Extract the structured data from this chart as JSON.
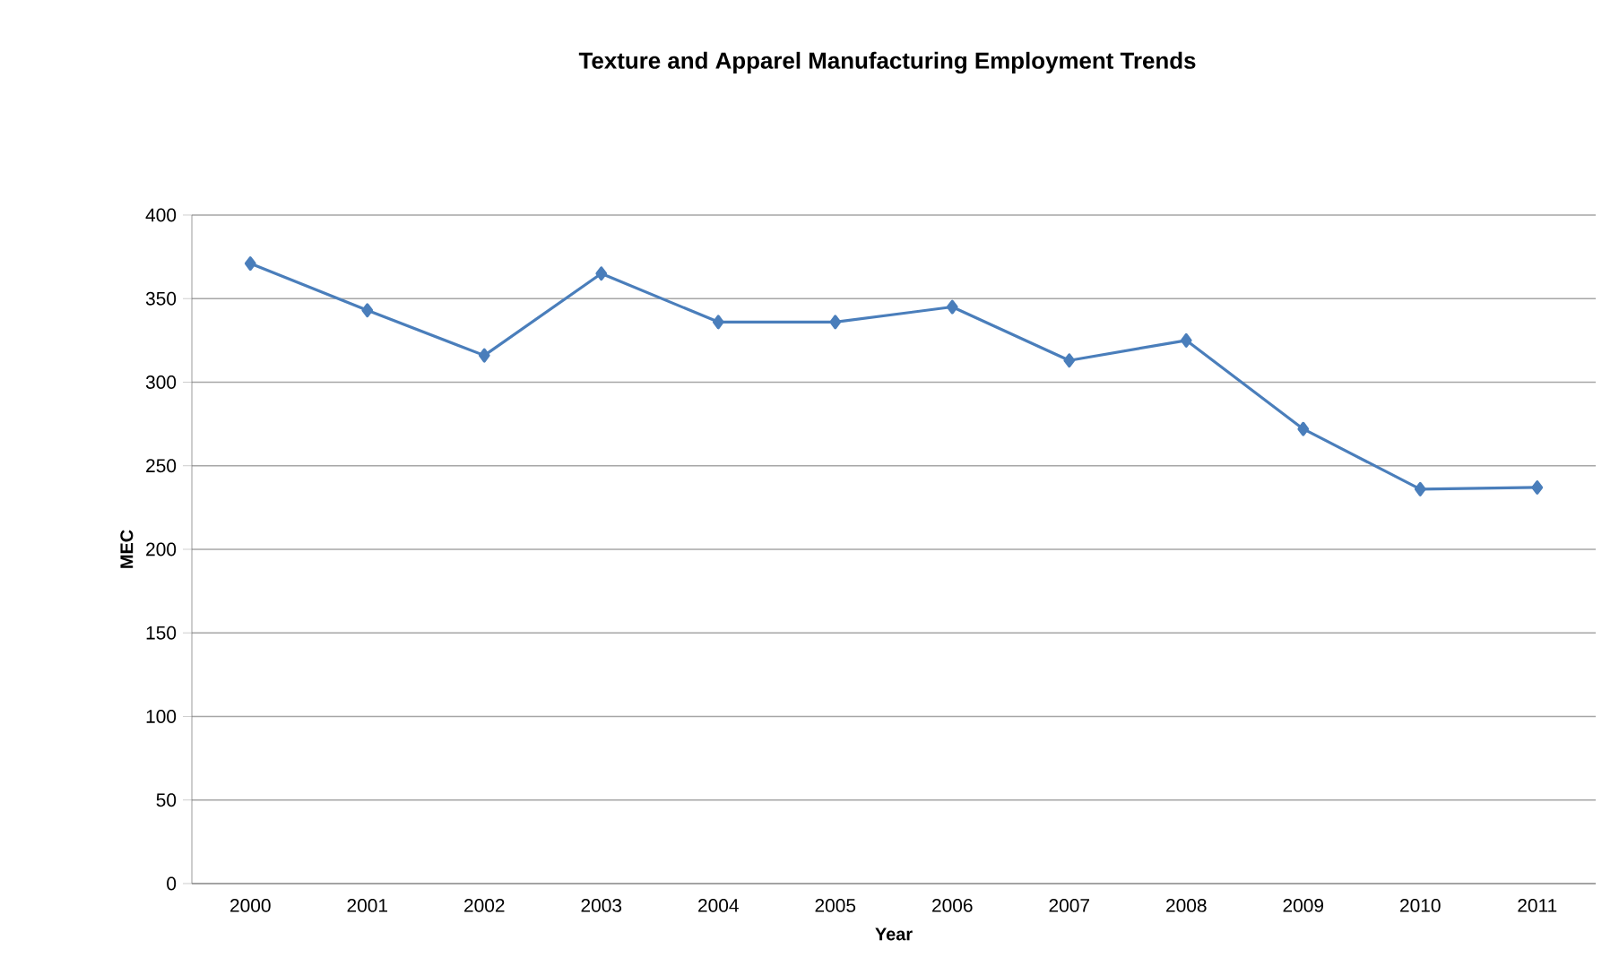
{
  "chart_data": {
    "type": "line",
    "title": "Texture and Apparel Manufacturing Employment Trends",
    "xlabel": "Year",
    "ylabel": "MEC",
    "categories": [
      "2000",
      "2001",
      "2002",
      "2003",
      "2004",
      "2005",
      "2006",
      "2007",
      "2008",
      "2009",
      "2010",
      "2011"
    ],
    "series": [
      {
        "color": "#4a7ebb",
        "values": [
          371,
          343,
          316,
          365,
          336,
          336,
          345,
          313,
          325,
          272,
          236,
          237
        ]
      }
    ],
    "ylim": [
      0,
      400
    ],
    "yticks": [
      0,
      50,
      100,
      150,
      200,
      250,
      300,
      350,
      400
    ],
    "grid": "y",
    "marker": "diamond",
    "line_style": "solid"
  }
}
